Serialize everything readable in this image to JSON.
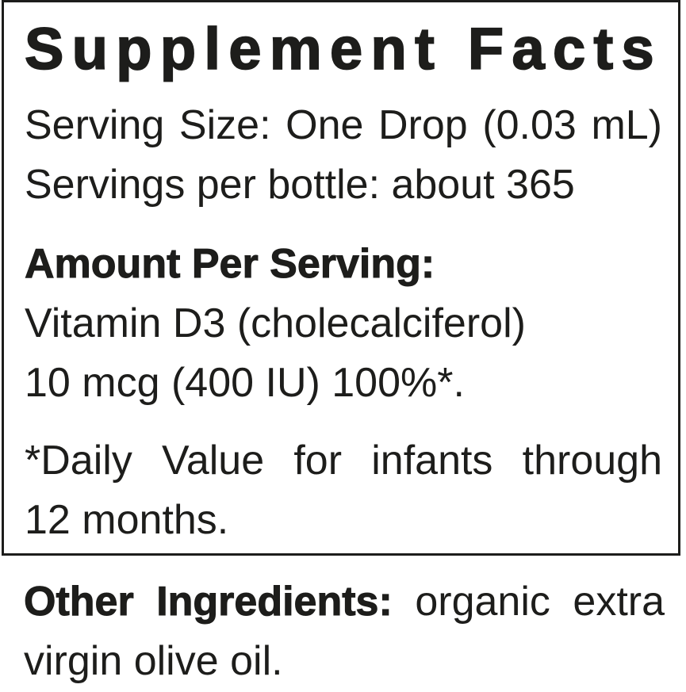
{
  "colors": {
    "text": "#1d1d1b",
    "background": "#ffffff",
    "border": "#1d1d1b"
  },
  "panel": {
    "title": "Supplement Facts",
    "serving_size": "Serving Size: One Drop (0.03 mL)",
    "servings_per_bottle": "Servings per bottle: about 365",
    "amount_per_serving": "Amount Per Serving:",
    "ingredient_name": "Vitamin D3 (cholecalciferol)",
    "ingredient_amount": "10 mcg (400 IU) 100%*.",
    "footnote": {
      "line1": "*Daily Value for infants through",
      "line2": "12 months."
    }
  },
  "other_ingredients": {
    "label": "Other Ingredients:",
    "line1_rest": "organic extra",
    "line2": "virgin olive oil."
  }
}
